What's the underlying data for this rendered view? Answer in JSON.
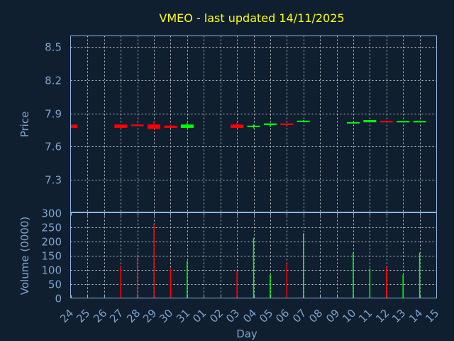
{
  "chart_data": [
    {
      "type": "candlestick",
      "title": "VMEO - last updated 14/11/2025",
      "ylabel": "Price",
      "ylim": [
        7.01,
        8.6
      ],
      "yticks": [
        "7.3",
        "7.6",
        "7.9",
        "8.2",
        "8.5"
      ],
      "grid": true,
      "up_color": "#00ff00",
      "down_color": "#ff0000",
      "candles": [
        {
          "day": "24",
          "open": 7.8,
          "high": 7.8,
          "low": 7.77,
          "close": 7.77
        },
        {
          "day": "27",
          "open": 7.8,
          "high": 7.8,
          "low": 7.77,
          "close": 7.77
        },
        {
          "day": "28",
          "open": 7.8,
          "high": 7.81,
          "low": 7.785,
          "close": 7.785
        },
        {
          "day": "29",
          "open": 7.8,
          "high": 7.83,
          "low": 7.76,
          "close": 7.76
        },
        {
          "day": "30",
          "open": 7.79,
          "high": 7.8,
          "low": 7.77,
          "close": 7.77
        },
        {
          "day": "31",
          "open": 7.77,
          "high": 7.815,
          "low": 7.77,
          "close": 7.8
        },
        {
          "day": "03",
          "open": 7.8,
          "high": 7.82,
          "low": 7.77,
          "close": 7.77
        },
        {
          "day": "04",
          "open": 7.78,
          "high": 7.8,
          "low": 7.765,
          "close": 7.79
        },
        {
          "day": "05",
          "open": 7.795,
          "high": 7.81,
          "low": 7.78,
          "close": 7.81
        },
        {
          "day": "06",
          "open": 7.81,
          "high": 7.81,
          "low": 7.795,
          "close": 7.795
        },
        {
          "day": "07",
          "open": 7.825,
          "high": 7.84,
          "low": 7.825,
          "close": 7.835
        },
        {
          "day": "10",
          "open": 7.812,
          "high": 7.822,
          "low": 7.808,
          "close": 7.822
        },
        {
          "day": "11",
          "open": 7.82,
          "high": 7.84,
          "low": 7.82,
          "close": 7.84
        },
        {
          "day": "12",
          "open": 7.832,
          "high": 7.835,
          "low": 7.822,
          "close": 7.822
        },
        {
          "day": "13",
          "open": 7.822,
          "high": 7.834,
          "low": 7.822,
          "close": 7.832
        },
        {
          "day": "14",
          "open": 7.822,
          "high": 7.835,
          "low": 7.822,
          "close": 7.832
        }
      ]
    },
    {
      "type": "bar",
      "xlabel": "Day",
      "ylabel": "Volume (0000)",
      "ylim": [
        0,
        300
      ],
      "yticks": [
        "0",
        "50",
        "100",
        "150",
        "200",
        "250",
        "300"
      ],
      "grid": true,
      "bars": [
        {
          "day": "27",
          "value": 115,
          "color": "#ff0000"
        },
        {
          "day": "28",
          "value": 153,
          "color": "#ff0000"
        },
        {
          "day": "29",
          "value": 261,
          "color": "#ff0000"
        },
        {
          "day": "30",
          "value": 104,
          "color": "#ff0000"
        },
        {
          "day": "31",
          "value": 131,
          "color": "#00ff00"
        },
        {
          "day": "03",
          "value": 95,
          "color": "#ff0000"
        },
        {
          "day": "04",
          "value": 212,
          "color": "#00ff00"
        },
        {
          "day": "05",
          "value": 82,
          "color": "#00ff00"
        },
        {
          "day": "06",
          "value": 121,
          "color": "#ff0000"
        },
        {
          "day": "07",
          "value": 228,
          "color": "#00ff00"
        },
        {
          "day": "10",
          "value": 160,
          "color": "#00ff00"
        },
        {
          "day": "11",
          "value": 104,
          "color": "#00ff00"
        },
        {
          "day": "12",
          "value": 108,
          "color": "#ff0000"
        },
        {
          "day": "13",
          "value": 82,
          "color": "#00ff00"
        },
        {
          "day": "14",
          "value": 160,
          "color": "#00ff00"
        }
      ]
    }
  ],
  "xticks": [
    "24",
    "25",
    "26",
    "27",
    "28",
    "29",
    "30",
    "31",
    "01",
    "02",
    "03",
    "04",
    "05",
    "06",
    "07",
    "08",
    "09",
    "10",
    "11",
    "12",
    "13",
    "14",
    "15"
  ],
  "colors": {
    "background": "#0f1f30",
    "axis": "#8cb4e0",
    "grid": "#c8c8c8",
    "text": "#7fa3cc",
    "title": "#ffff00"
  }
}
